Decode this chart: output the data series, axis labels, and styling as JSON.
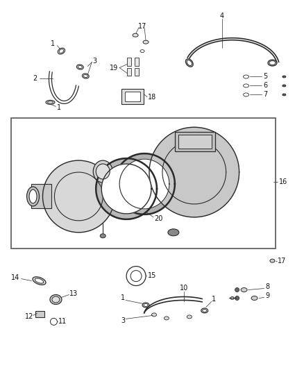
{
  "bg_color": "#ffffff",
  "line_color": "#2a2a2a",
  "label_color": "#111111",
  "font_size": 7.0,
  "fig_w": 4.38,
  "fig_h": 5.33,
  "dpi": 100
}
